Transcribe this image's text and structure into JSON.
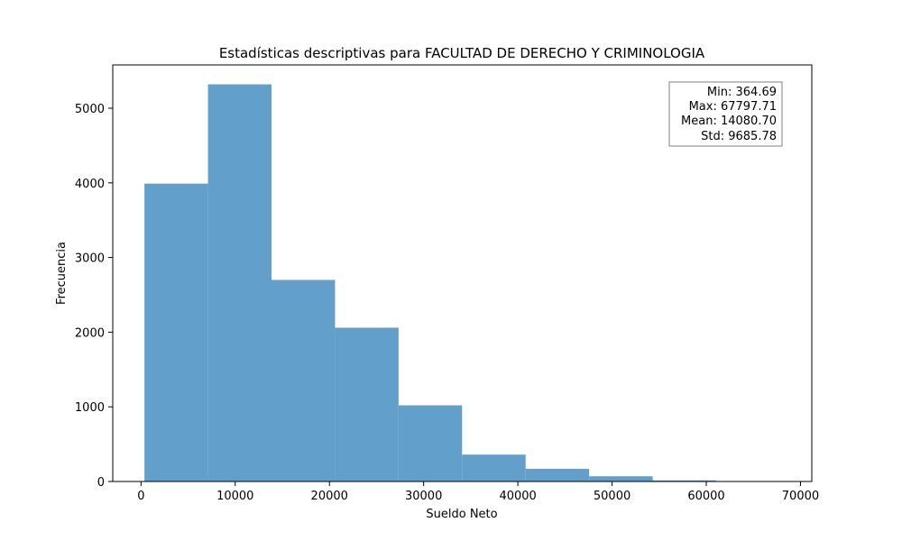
{
  "chart_data": {
    "type": "bar",
    "subtype": "histogram",
    "title": "Estadísticas descriptivas para FACULTAD DE DERECHO Y CRIMINOLOGIA",
    "xlabel": "Sueldo Neto",
    "ylabel": "Frecuencia",
    "xlim": [
      -3000,
      71200
    ],
    "ylim": [
      0,
      5580
    ],
    "xticks": [
      0,
      10000,
      20000,
      30000,
      40000,
      50000,
      60000,
      70000
    ],
    "yticks": [
      0,
      1000,
      2000,
      3000,
      4000,
      5000
    ],
    "bin_edges": [
      364.69,
      7107.99,
      13851.29,
      20594.59,
      27337.9,
      34081.2,
      40824.5,
      47567.8,
      54311.11,
      61054.41,
      67797.71
    ],
    "values": [
      3990,
      5320,
      2700,
      2060,
      1020,
      360,
      170,
      70,
      15,
      5
    ],
    "bar_color": "#629fca",
    "grid": false,
    "stats_box": {
      "placement": "top-right",
      "lines": [
        "Min: 364.69",
        "Max: 67797.71",
        "Mean: 14080.70",
        "Std: 9685.78"
      ]
    }
  }
}
